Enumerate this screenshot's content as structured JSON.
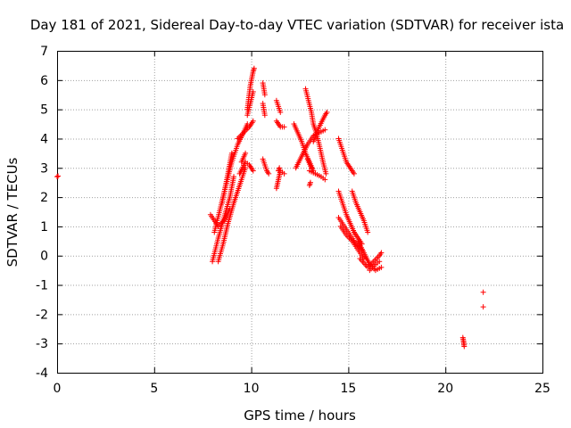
{
  "chart_data": {
    "type": "scatter",
    "title": "Day 181 of 2021, Sidereal Day-to-day VTEC variation (SDTVAR) for receiver ista",
    "xlabel": "GPS time / hours",
    "ylabel": "SDTVAR / TECUs",
    "xlim": [
      0,
      25
    ],
    "ylim": [
      -4,
      7
    ],
    "xticks": [
      0,
      5,
      10,
      15,
      20,
      25
    ],
    "yticks": [
      -4,
      -3,
      -2,
      -1,
      0,
      1,
      2,
      3,
      4,
      5,
      6,
      7
    ],
    "grid": true,
    "marker": "plus",
    "color": "#ff0000",
    "series": [
      {
        "segments": [
          [
            [
              0.0,
              2.7
            ],
            [
              0.05,
              2.72
            ]
          ],
          [
            [
              8.0,
              -0.2
            ],
            [
              8.3,
              0.6
            ],
            [
              8.6,
              1.3
            ],
            [
              8.9,
              2.0
            ],
            [
              9.1,
              2.7
            ]
          ],
          [
            [
              8.1,
              0.8
            ],
            [
              8.4,
              1.6
            ],
            [
              8.7,
              2.4
            ],
            [
              9.0,
              3.2
            ],
            [
              9.3,
              3.8
            ],
            [
              9.6,
              4.2
            ],
            [
              9.8,
              4.5
            ]
          ],
          [
            [
              8.3,
              -0.2
            ],
            [
              8.55,
              0.4
            ],
            [
              8.8,
              1.1
            ],
            [
              9.1,
              1.8
            ],
            [
              9.5,
              2.6
            ],
            [
              9.7,
              3.0
            ]
          ],
          [
            [
              7.9,
              1.4
            ],
            [
              8.3,
              1.0
            ],
            [
              8.6,
              1.2
            ],
            [
              8.9,
              1.6
            ]
          ],
          [
            [
              8.5,
              1.8
            ],
            [
              8.8,
              2.8
            ],
            [
              9.0,
              3.5
            ]
          ],
          [
            [
              9.3,
              4.0
            ],
            [
              9.6,
              4.2
            ],
            [
              9.9,
              4.4
            ],
            [
              10.1,
              4.6
            ]
          ],
          [
            [
              9.4,
              2.8
            ],
            [
              9.7,
              3.2
            ],
            [
              9.9,
              3.1
            ],
            [
              10.1,
              2.9
            ]
          ],
          [
            [
              9.5,
              3.2
            ],
            [
              9.7,
              3.5
            ]
          ],
          [
            [
              9.8,
              5.0
            ],
            [
              9.95,
              5.8
            ],
            [
              10.1,
              6.3
            ],
            [
              10.15,
              6.4
            ]
          ],
          [
            [
              9.8,
              4.8
            ],
            [
              9.95,
              5.2
            ],
            [
              10.1,
              5.6
            ]
          ],
          [
            [
              10.6,
              5.9
            ],
            [
              10.65,
              5.7
            ],
            [
              10.7,
              5.5
            ]
          ],
          [
            [
              10.6,
              5.2
            ],
            [
              10.65,
              5.0
            ],
            [
              10.7,
              4.8
            ]
          ],
          [
            [
              10.6,
              3.3
            ],
            [
              10.7,
              3.1
            ],
            [
              10.8,
              2.9
            ],
            [
              10.9,
              2.8
            ]
          ],
          [
            [
              11.3,
              5.3
            ],
            [
              11.4,
              5.1
            ],
            [
              11.5,
              4.9
            ]
          ],
          [
            [
              11.3,
              4.6
            ],
            [
              11.5,
              4.4
            ],
            [
              11.7,
              4.4
            ]
          ],
          [
            [
              11.3,
              2.3
            ],
            [
              11.4,
              2.6
            ],
            [
              11.5,
              2.9
            ],
            [
              11.7,
              2.8
            ]
          ],
          [
            [
              11.4,
              2.9
            ],
            [
              11.45,
              3.0
            ]
          ],
          [
            [
              12.2,
              4.5
            ],
            [
              12.4,
              4.2
            ],
            [
              12.6,
              3.9
            ],
            [
              12.8,
              3.5
            ],
            [
              13.0,
              3.2
            ],
            [
              13.2,
              2.9
            ]
          ],
          [
            [
              12.3,
              3.0
            ],
            [
              12.6,
              3.4
            ],
            [
              12.9,
              3.8
            ],
            [
              13.2,
              4.1
            ],
            [
              13.5,
              4.2
            ],
            [
              13.8,
              4.3
            ]
          ],
          [
            [
              12.8,
              5.7
            ],
            [
              12.95,
              5.3
            ],
            [
              13.1,
              4.9
            ],
            [
              13.2,
              4.5
            ],
            [
              13.35,
              4.2
            ],
            [
              13.5,
              3.8
            ],
            [
              13.7,
              3.2
            ],
            [
              13.85,
              2.8
            ]
          ],
          [
            [
              13.2,
              3.9
            ],
            [
              13.5,
              4.4
            ],
            [
              13.8,
              4.8
            ],
            [
              13.9,
              4.9
            ]
          ],
          [
            [
              13.0,
              2.9
            ],
            [
              13.3,
              2.8
            ],
            [
              13.6,
              2.7
            ],
            [
              13.8,
              2.6
            ]
          ],
          [
            [
              12.9,
              3.3
            ],
            [
              13.1,
              3.0
            ]
          ],
          [
            [
              13.0,
              2.4
            ],
            [
              13.05,
              2.5
            ]
          ],
          [
            [
              14.5,
              4.0
            ],
            [
              14.7,
              3.6
            ],
            [
              14.9,
              3.2
            ],
            [
              15.1,
              3.0
            ],
            [
              15.3,
              2.8
            ]
          ],
          [
            [
              14.5,
              2.2
            ],
            [
              14.7,
              1.8
            ],
            [
              14.9,
              1.4
            ],
            [
              15.1,
              1.1
            ],
            [
              15.3,
              0.8
            ],
            [
              15.5,
              0.6
            ],
            [
              15.7,
              0.4
            ]
          ],
          [
            [
              14.5,
              1.3
            ],
            [
              14.8,
              1.0
            ],
            [
              15.1,
              0.7
            ],
            [
              15.4,
              0.4
            ],
            [
              15.7,
              0.2
            ]
          ],
          [
            [
              14.6,
              1.0
            ],
            [
              14.9,
              0.7
            ],
            [
              15.2,
              0.5
            ],
            [
              15.5,
              0.2
            ],
            [
              15.8,
              -0.1
            ]
          ],
          [
            [
              15.2,
              2.2
            ],
            [
              15.4,
              1.8
            ],
            [
              15.6,
              1.5
            ],
            [
              15.8,
              1.2
            ],
            [
              16.0,
              0.8
            ]
          ],
          [
            [
              15.5,
              0.5
            ],
            [
              15.8,
              0.1
            ],
            [
              16.1,
              -0.3
            ],
            [
              16.4,
              -0.5
            ],
            [
              16.7,
              -0.4
            ]
          ],
          [
            [
              15.6,
              -0.1
            ],
            [
              16.0,
              -0.4
            ],
            [
              16.3,
              -0.2
            ],
            [
              16.6,
              0.0
            ],
            [
              16.7,
              0.1
            ]
          ],
          [
            [
              16.1,
              -0.5
            ],
            [
              16.4,
              -0.3
            ],
            [
              16.6,
              -0.2
            ]
          ],
          [
            [
              20.9,
              -2.8
            ],
            [
              20.93,
              -2.9
            ],
            [
              20.95,
              -3.0
            ],
            [
              20.97,
              -3.1
            ]
          ],
          [
            [
              21.95,
              -1.25
            ]
          ],
          [
            [
              21.95,
              -1.75
            ]
          ]
        ]
      }
    ]
  }
}
